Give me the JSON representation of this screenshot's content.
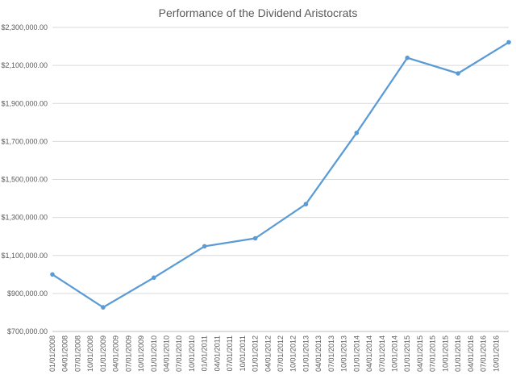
{
  "chart_data": {
    "type": "line",
    "title": "Performance of the Dividend Aristocrats",
    "xlabel": "",
    "ylabel": "",
    "ylim": [
      700000,
      2300000
    ],
    "y_ticks": [
      700000,
      900000,
      1100000,
      1300000,
      1500000,
      1700000,
      1900000,
      2100000,
      2300000
    ],
    "y_tick_labels": [
      "$700,000.00",
      "$900,000.00",
      "$1,100,000.00",
      "$1,300,000.00",
      "$1,500,000.00",
      "$1,700,000.00",
      "$1,900,000.00",
      "$2,100,000.00",
      "$2,300,000.00"
    ],
    "categories": [
      "01/01/2008",
      "04/01/2008",
      "07/01/2008",
      "10/01/2008",
      "01/01/2009",
      "04/01/2009",
      "07/01/2009",
      "10/01/2009",
      "01/01/2010",
      "04/01/2010",
      "07/01/2010",
      "10/01/2010",
      "01/01/2011",
      "04/01/2011",
      "07/01/2011",
      "10/01/2011",
      "01/01/2012",
      "04/01/2012",
      "07/01/2012",
      "10/01/2012",
      "01/01/2013",
      "04/01/2013",
      "07/01/2013",
      "10/01/2013",
      "01/01/2014",
      "04/01/2014",
      "07/01/2014",
      "10/01/2014",
      "01/01/2015",
      "04/01/2015",
      "07/01/2015",
      "10/01/2015",
      "01/01/2016",
      "04/01/2016",
      "07/01/2016",
      "10/01/2016"
    ],
    "series": [
      {
        "color": "#5b9bd5",
        "points": [
          {
            "x": "01/01/2008",
            "y": 1000000
          },
          {
            "x": "01/01/2009",
            "y": 827000
          },
          {
            "x": "01/01/2010",
            "y": 983000
          },
          {
            "x": "01/01/2011",
            "y": 1148000
          },
          {
            "x": "01/01/2012",
            "y": 1190000
          },
          {
            "x": "01/01/2013",
            "y": 1370000
          },
          {
            "x": "01/01/2014",
            "y": 1745000
          },
          {
            "x": "01/01/2015",
            "y": 2140000
          },
          {
            "x": "01/01/2016",
            "y": 2058000
          },
          {
            "x": "01/01/2017",
            "y": 2222000
          }
        ]
      }
    ],
    "grid": {
      "horizontal": true,
      "vertical": false
    },
    "legend": "none",
    "colors": {
      "grid": "#d9d9d9",
      "axis": "#bfbfbf",
      "text": "#595959"
    }
  }
}
